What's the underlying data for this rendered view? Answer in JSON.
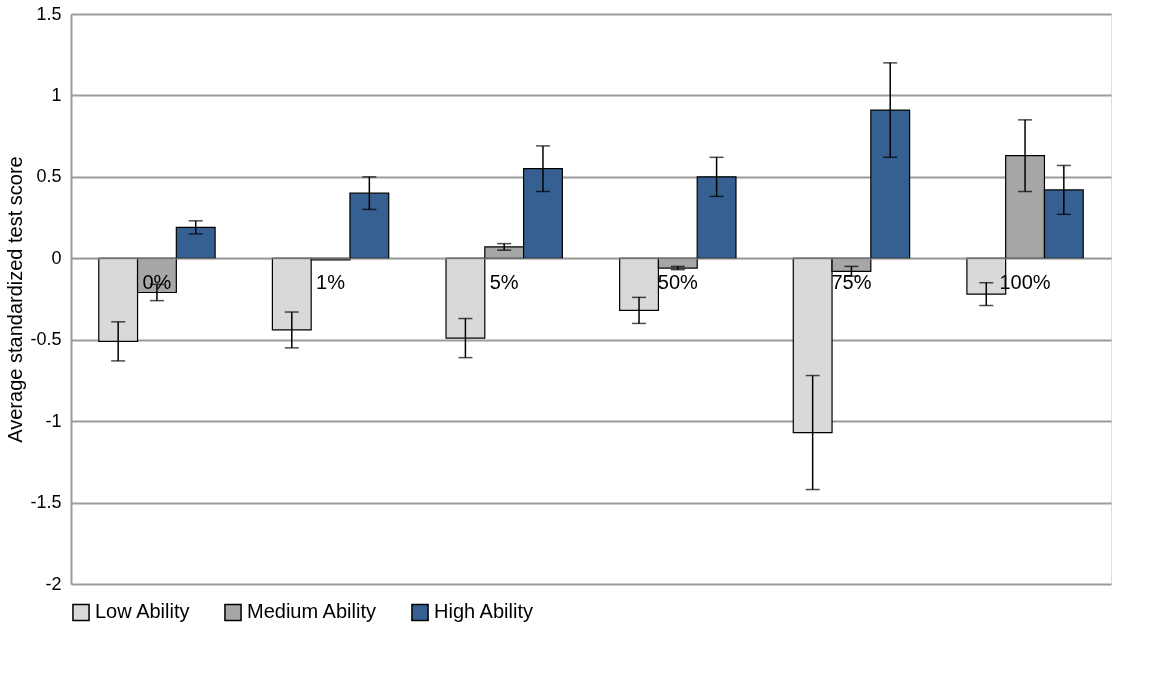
{
  "chart_data": {
    "type": "bar",
    "ylabel": "Average standardized test score",
    "categories": [
      "0%",
      "1%",
      "5%",
      "50%",
      "75%",
      "100%"
    ],
    "ylim": [
      -2,
      1.5
    ],
    "yticks": [
      -2,
      -1.5,
      -1,
      -0.5,
      0,
      0.5,
      1,
      1.5
    ],
    "grid": "y",
    "legend": "bottom",
    "series": [
      {
        "name": "Low Ability",
        "color": "#d9d9d9",
        "values": [
          -0.51,
          -0.44,
          -0.49,
          -0.32,
          -1.07,
          -0.22
        ],
        "errors": [
          0.12,
          0.11,
          0.12,
          0.08,
          0.35,
          0.07
        ]
      },
      {
        "name": "Medium Ability",
        "color": "#a6a6a6",
        "values": [
          -0.21,
          -0.01,
          0.07,
          -0.06,
          -0.08,
          0.63
        ],
        "errors": [
          0.05,
          null,
          0.02,
          0.01,
          0.03,
          0.22
        ]
      },
      {
        "name": "High Ability",
        "color": "#376092",
        "values": [
          0.19,
          0.4,
          0.55,
          0.5,
          0.91,
          0.42
        ],
        "errors": [
          0.04,
          0.1,
          0.14,
          0.12,
          0.29,
          0.15
        ]
      }
    ]
  }
}
